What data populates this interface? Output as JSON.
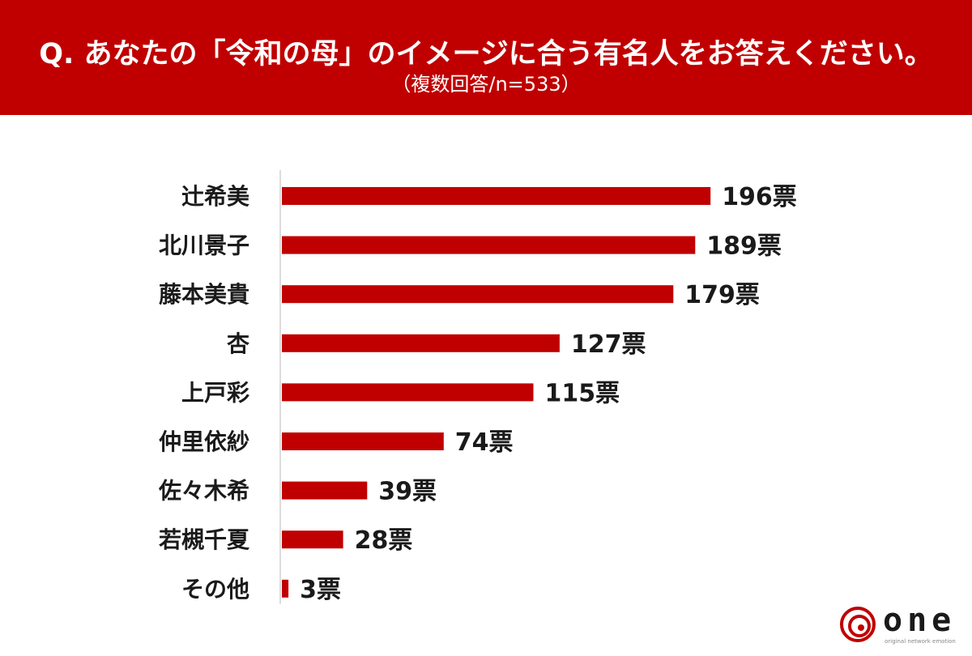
{
  "header": {
    "title": "Q. あなたの「令和の母」のイメージに合う有名人をお答えください。",
    "subtitle": "（複数回答/n=533）",
    "background_color": "#c00000"
  },
  "chart_data": {
    "type": "bar",
    "orientation": "horizontal",
    "categories": [
      "辻希美",
      "北川景子",
      "藤本美貴",
      "杏",
      "上戸彩",
      "仲里依紗",
      "佐々木希",
      "若槻千夏",
      "その他"
    ],
    "values": [
      196,
      189,
      179,
      127,
      115,
      74,
      39,
      28,
      3
    ],
    "data_labels": [
      "196票",
      "189票",
      "179票",
      "127票",
      "115票",
      "74票",
      "39票",
      "28票",
      "3票"
    ],
    "value_unit": "票",
    "bar_color": "#c00000",
    "xlim": [
      0,
      200
    ],
    "grid": false,
    "legend": "none"
  },
  "logo": {
    "word": "one",
    "tagline": "original network emotion",
    "color": "#c00000"
  }
}
